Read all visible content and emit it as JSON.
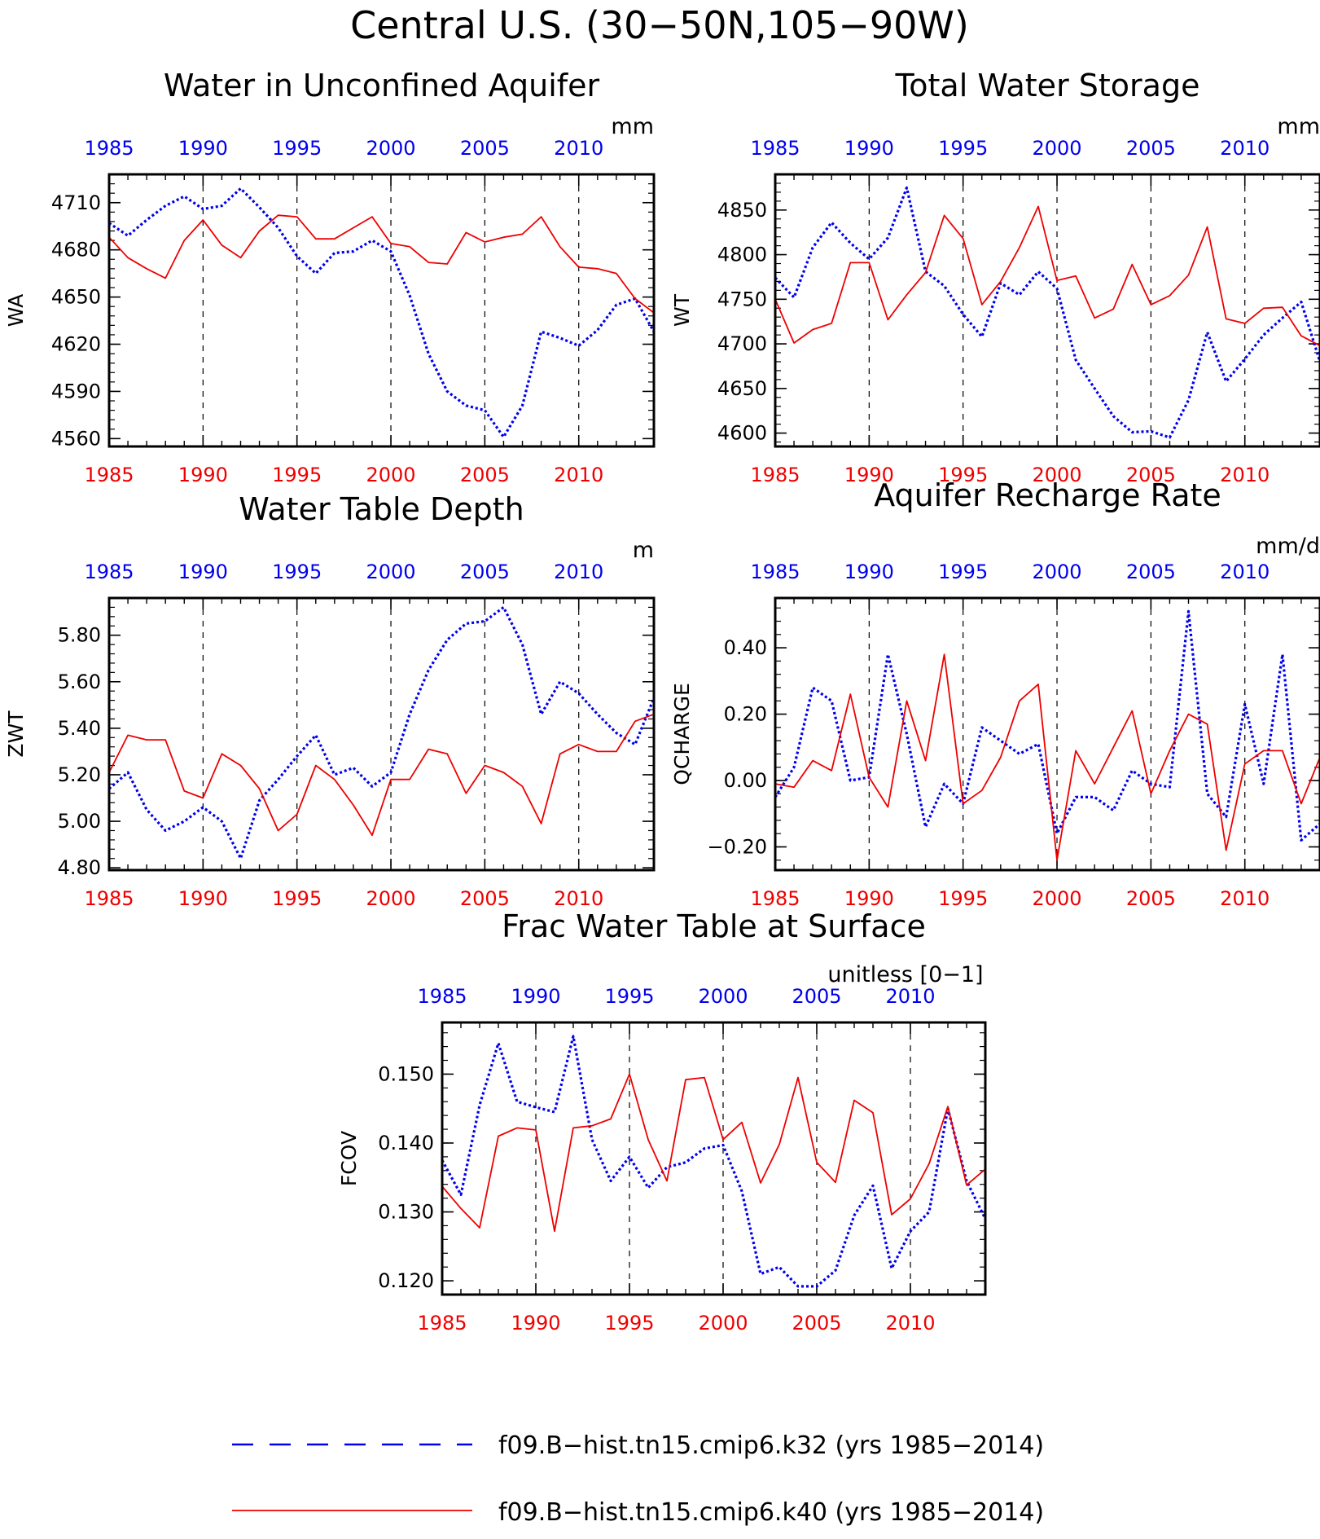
{
  "main_title": "Central U.S. (30−50N,105−90W)",
  "colors": {
    "series_a": "#0000ee",
    "series_b": "#ee0000",
    "axis": "#000000",
    "grid": "#000000"
  },
  "legend": {
    "placement": "bottom",
    "entries": [
      {
        "label": "f09.B−hist.tn15.cmip6.k32 (yrs 1985−2014)",
        "style": "dashed",
        "color": "#0000ee"
      },
      {
        "label": "f09.B−hist.tn15.cmip6.k40 (yrs 1985−2014)",
        "style": "solid",
        "color": "#ee0000"
      }
    ]
  },
  "chart_data": [
    {
      "type": "line",
      "title": "Water in Unconfined Aquifer",
      "ylabel": "WA",
      "units": "mm",
      "xlim": [
        1985,
        2014
      ],
      "ylim": [
        4555,
        4728
      ],
      "xticks": [
        1985,
        1990,
        1995,
        2000,
        2005,
        2010
      ],
      "yticks": [
        4560,
        4590,
        4620,
        4650,
        4680,
        4710
      ],
      "ytick_decimals": 0,
      "vlines": [
        1990,
        1995,
        2000,
        2005,
        2010
      ],
      "x": [
        1985,
        1986,
        1987,
        1988,
        1989,
        1990,
        1991,
        1992,
        1993,
        1994,
        1995,
        1996,
        1997,
        1998,
        1999,
        2000,
        2001,
        2002,
        2003,
        2004,
        2005,
        2006,
        2007,
        2008,
        2009,
        2010,
        2011,
        2012,
        2013,
        2014
      ],
      "series": [
        {
          "style": "dashed",
          "values": [
            4697,
            4689,
            4699,
            4708,
            4714,
            4706,
            4708,
            4719,
            4707,
            4694,
            4676,
            4665,
            4678,
            4679,
            4686,
            4679,
            4651,
            4614,
            4590,
            4581,
            4578,
            4561,
            4581,
            4628,
            4624,
            4619,
            4629,
            4645,
            4649,
            4628
          ]
        },
        {
          "style": "solid",
          "values": [
            4688,
            4675,
            4668,
            4662,
            4686,
            4699,
            4683,
            4675,
            4692,
            4702,
            4701,
            4687,
            4687,
            4694,
            4701,
            4684,
            4682,
            4672,
            4671,
            4691,
            4685,
            4688,
            4690,
            4701,
            4682,
            4669,
            4668,
            4665,
            4649,
            4640
          ]
        }
      ]
    },
    {
      "type": "line",
      "title": "Total Water Storage",
      "ylabel": "WT",
      "units": "mm",
      "xlim": [
        1985,
        2014
      ],
      "ylim": [
        4585,
        4890
      ],
      "xticks": [
        1985,
        1990,
        1995,
        2000,
        2005,
        2010
      ],
      "yticks": [
        4600,
        4650,
        4700,
        4750,
        4800,
        4850
      ],
      "ytick_decimals": 0,
      "vlines": [
        1990,
        1995,
        2000,
        2005,
        2010
      ],
      "x": [
        1985,
        1986,
        1987,
        1988,
        1989,
        1990,
        1991,
        1992,
        1993,
        1994,
        1995,
        1996,
        1997,
        1998,
        1999,
        2000,
        2001,
        2002,
        2003,
        2004,
        2005,
        2006,
        2007,
        2008,
        2009,
        2010,
        2011,
        2012,
        2013,
        2014
      ],
      "series": [
        {
          "style": "dashed",
          "values": [
            4774,
            4752,
            4808,
            4836,
            4813,
            4795,
            4819,
            4875,
            4781,
            4765,
            4733,
            4708,
            4768,
            4755,
            4781,
            4762,
            4682,
            4650,
            4619,
            4601,
            4602,
            4595,
            4637,
            4713,
            4658,
            4683,
            4710,
            4729,
            4747,
            4680
          ]
        },
        {
          "style": "solid",
          "values": [
            4750,
            4701,
            4716,
            4723,
            4791,
            4791,
            4727,
            4755,
            4780,
            4844,
            4818,
            4744,
            4770,
            4808,
            4854,
            4771,
            4776,
            4729,
            4739,
            4789,
            4744,
            4754,
            4777,
            4831,
            4728,
            4723,
            4740,
            4741,
            4709,
            4698
          ]
        }
      ]
    },
    {
      "type": "line",
      "title": "Water Table Depth",
      "ylabel": "ZWT",
      "units": "m",
      "xlim": [
        1985,
        2014
      ],
      "ylim": [
        4.79,
        5.96
      ],
      "xticks": [
        1985,
        1990,
        1995,
        2000,
        2005,
        2010
      ],
      "yticks": [
        4.8,
        5.0,
        5.2,
        5.4,
        5.6,
        5.8
      ],
      "ytick_decimals": 2,
      "vlines": [
        1990,
        1995,
        2000,
        2005,
        2010
      ],
      "x": [
        1985,
        1986,
        1987,
        1988,
        1989,
        1990,
        1991,
        1992,
        1993,
        1994,
        1995,
        1996,
        1997,
        1998,
        1999,
        2000,
        2001,
        2002,
        2003,
        2004,
        2005,
        2006,
        2007,
        2008,
        2009,
        2010,
        2011,
        2012,
        2013,
        2014
      ],
      "series": [
        {
          "style": "dashed",
          "values": [
            5.14,
            5.21,
            5.05,
            4.96,
            5.0,
            5.06,
            5.0,
            4.84,
            5.09,
            5.18,
            5.28,
            5.37,
            5.2,
            5.23,
            5.15,
            5.21,
            5.46,
            5.65,
            5.78,
            5.85,
            5.86,
            5.92,
            5.76,
            5.46,
            5.6,
            5.55,
            5.46,
            5.38,
            5.33,
            5.53
          ]
        },
        {
          "style": "solid",
          "values": [
            5.21,
            5.37,
            5.35,
            5.35,
            5.13,
            5.1,
            5.29,
            5.24,
            5.14,
            4.96,
            5.03,
            5.24,
            5.18,
            5.07,
            4.94,
            5.18,
            5.18,
            5.31,
            5.29,
            5.12,
            5.24,
            5.21,
            5.15,
            4.99,
            5.29,
            5.33,
            5.3,
            5.3,
            5.43,
            5.46
          ]
        }
      ]
    },
    {
      "type": "line",
      "title": "Aquifer Recharge Rate",
      "ylabel": "QCHARGE",
      "units": "mm/d",
      "xlim": [
        1985,
        2014
      ],
      "ylim": [
        -0.27,
        0.55
      ],
      "xticks": [
        1985,
        1990,
        1995,
        2000,
        2005,
        2010
      ],
      "yticks": [
        -0.2,
        0.0,
        0.2,
        0.4
      ],
      "ytick_decimals": 2,
      "vlines": [
        1990,
        1995,
        2000,
        2005,
        2010
      ],
      "x": [
        1985,
        1986,
        1987,
        1988,
        1989,
        1990,
        1991,
        1992,
        1993,
        1994,
        1995,
        1996,
        1997,
        1998,
        1999,
        2000,
        2001,
        2002,
        2003,
        2004,
        2005,
        2006,
        2007,
        2008,
        2009,
        2010,
        2011,
        2012,
        2013,
        2014
      ],
      "series": [
        {
          "style": "dashed",
          "values": [
            -0.05,
            0.04,
            0.28,
            0.24,
            0.0,
            0.01,
            0.38,
            0.14,
            -0.14,
            -0.01,
            -0.07,
            0.16,
            0.12,
            0.08,
            0.11,
            -0.16,
            -0.05,
            -0.05,
            -0.09,
            0.03,
            -0.01,
            -0.02,
            0.51,
            -0.04,
            -0.11,
            0.23,
            -0.01,
            0.38,
            -0.18,
            -0.13
          ]
        },
        {
          "style": "solid",
          "values": [
            -0.01,
            -0.02,
            0.06,
            0.03,
            0.26,
            0.01,
            -0.08,
            0.24,
            0.06,
            0.38,
            -0.07,
            -0.03,
            0.07,
            0.24,
            0.29,
            -0.24,
            0.09,
            -0.01,
            0.1,
            0.21,
            -0.04,
            0.09,
            0.2,
            0.17,
            -0.21,
            0.05,
            0.09,
            0.09,
            -0.07,
            0.07
          ]
        }
      ]
    },
    {
      "type": "line",
      "title": "Frac Water Table at Surface",
      "ylabel": "FCOV",
      "units": "unitless [0−1]",
      "xlim": [
        1985,
        2014
      ],
      "ylim": [
        0.118,
        0.1575
      ],
      "xticks": [
        1985,
        1990,
        1995,
        2000,
        2005,
        2010
      ],
      "yticks": [
        0.12,
        0.13,
        0.14,
        0.15
      ],
      "ytick_decimals": 3,
      "vlines": [
        1990,
        1995,
        2000,
        2005,
        2010
      ],
      "x": [
        1985,
        1986,
        1987,
        1988,
        1989,
        1990,
        1991,
        1992,
        1993,
        1994,
        1995,
        1996,
        1997,
        1998,
        1999,
        2000,
        2001,
        2002,
        2003,
        2004,
        2005,
        2006,
        2007,
        2008,
        2009,
        2010,
        2011,
        2012,
        2013,
        2014
      ],
      "series": [
        {
          "style": "dashed",
          "values": [
            0.1375,
            0.1325,
            0.1455,
            0.1545,
            0.146,
            0.1452,
            0.1445,
            0.1555,
            0.1405,
            0.1345,
            0.138,
            0.1335,
            0.1365,
            0.1372,
            0.1392,
            0.1397,
            0.133,
            0.121,
            0.122,
            0.1192,
            0.1192,
            0.1215,
            0.1295,
            0.1338,
            0.1218,
            0.1272,
            0.13,
            0.145,
            0.1345,
            0.129
          ]
        },
        {
          "style": "solid",
          "values": [
            0.1337,
            0.1305,
            0.1277,
            0.141,
            0.1422,
            0.1419,
            0.1272,
            0.1422,
            0.1425,
            0.1435,
            0.15,
            0.1405,
            0.1345,
            0.1492,
            0.1495,
            0.1405,
            0.143,
            0.1342,
            0.1398,
            0.1495,
            0.1372,
            0.1343,
            0.1462,
            0.1444,
            0.1296,
            0.1319,
            0.137,
            0.1453,
            0.1339,
            0.1362
          ]
        }
      ]
    }
  ]
}
